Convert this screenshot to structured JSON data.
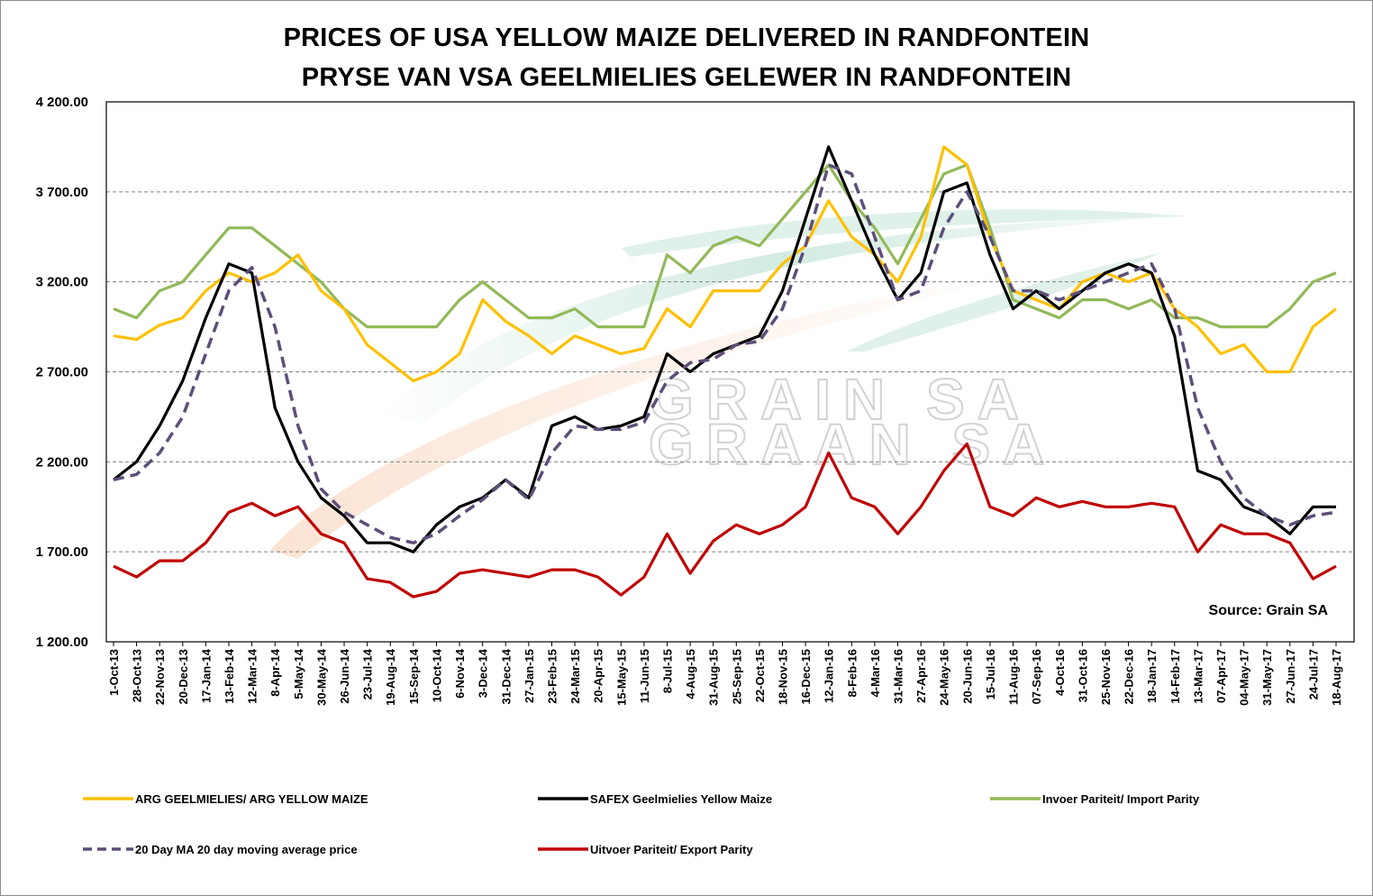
{
  "colors": {
    "arg": "#FFC000",
    "safex": "#000000",
    "import": "#92B959",
    "ma": "#5D4E7A",
    "export": "#C00000",
    "grid": "#808080"
  },
  "source_label": "Source: Grain SA",
  "chart_data": {
    "type": "line",
    "title": "PRICES OF USA YELLOW MAIZE DELIVERED IN RANDFONTEIN",
    "subtitle": "PRYSE VAN VSA GEELMIELIES GELEWER IN RANDFONTEIN",
    "xlabel": "",
    "ylabel": "",
    "ylim": [
      1200,
      4200
    ],
    "yticks": [
      "1 200.00",
      "1 700.00",
      "2 200.00",
      "2 700.00",
      "3 200.00",
      "3 700.00",
      "4 200.00"
    ],
    "grid": "horizontal dashed",
    "legend_position": "bottom",
    "categories": [
      "1-Oct-13",
      "28-Oct-13",
      "22-Nov-13",
      "20-Dec-13",
      "17-Jan-14",
      "13-Feb-14",
      "12-Mar-14",
      "8-Apr-14",
      "5-May-14",
      "30-May-14",
      "26-Jun-14",
      "23-Jul-14",
      "19-Aug-14",
      "15-Sep-14",
      "10-Oct-14",
      "6-Nov-14",
      "3-Dec-14",
      "31-Dec-14",
      "27-Jan-15",
      "23-Feb-15",
      "24-Mar-15",
      "20-Apr-15",
      "15-May-15",
      "11-Jun-15",
      "8-Jul-15",
      "4-Aug-15",
      "31-Aug-15",
      "25-Sep-15",
      "22-Oct-15",
      "18-Nov-15",
      "16-Dec-15",
      "12-Jan-16",
      "8-Feb-16",
      "4-Mar-16",
      "31-Mar-16",
      "27-Apr-16",
      "24-May-16",
      "20-Jun-16",
      "15-Jul-16",
      "11-Aug-16",
      "07-Sep-16",
      "4-Oct-16",
      "31-Oct-16",
      "25-Nov-16",
      "22-Dec-16",
      "18-Jan-17",
      "14-Feb-17",
      "13-Mar-17",
      "07-Apr-17",
      "04-May-17",
      "31-May-17",
      "27-Jun-17",
      "24-Jul-17",
      "18-Aug-17"
    ],
    "series": [
      {
        "name": "ARG GEELMIELIES/  ARG YELLOW MAIZE",
        "color": "#FFC000",
        "dashed": false,
        "values": [
          2900,
          2880,
          2960,
          3000,
          3150,
          3250,
          3200,
          3250,
          3350,
          3150,
          3050,
          2850,
          2750,
          2650,
          2700,
          2800,
          3100,
          2980,
          2900,
          2800,
          2900,
          2850,
          2800,
          2830,
          3050,
          2950,
          3150,
          3150,
          3150,
          3300,
          3400,
          3650,
          3450,
          3350,
          3200,
          3450,
          3950,
          3850,
          3450,
          3150,
          3100,
          3050,
          3200,
          3250,
          3200,
          3250,
          3050,
          2950,
          2800,
          2850,
          2700,
          2700,
          2950,
          3050
        ]
      },
      {
        "name": "SAFEX Geelmielies Yellow Maize",
        "color": "#000000",
        "dashed": false,
        "values": [
          2100,
          2200,
          2400,
          2650,
          3000,
          3300,
          3250,
          2500,
          2200,
          2000,
          1900,
          1750,
          1750,
          1700,
          1850,
          1950,
          2000,
          2100,
          2000,
          2400,
          2450,
          2380,
          2400,
          2450,
          2800,
          2700,
          2800,
          2850,
          2900,
          3150,
          3550,
          3950,
          3650,
          3350,
          3100,
          3250,
          3700,
          3750,
          3350,
          3050,
          3150,
          3050,
          3150,
          3250,
          3300,
          3250,
          2900,
          2150,
          2100,
          1950,
          1900,
          1800,
          1950,
          1950
        ]
      },
      {
        "name": "Invoer Pariteit/ Import Parity",
        "color": "#92B959",
        "dashed": false,
        "values": [
          3050,
          3000,
          3150,
          3200,
          3350,
          3500,
          3500,
          3400,
          3300,
          3200,
          3050,
          2950,
          2950,
          2950,
          2950,
          3100,
          3200,
          3100,
          3000,
          3000,
          3050,
          2950,
          2950,
          2950,
          3350,
          3250,
          3400,
          3450,
          3400,
          3550,
          3700,
          3850,
          3650,
          3500,
          3300,
          3550,
          3800,
          3850,
          3500,
          3100,
          3050,
          3000,
          3100,
          3100,
          3050,
          3100,
          3000,
          3000,
          2950,
          2950,
          2950,
          3050,
          3200,
          3250
        ]
      },
      {
        "name": "20 Day MA 20 day moving average price",
        "color": "#5D4E7A",
        "dashed": true,
        "values": [
          2100,
          2130,
          2250,
          2450,
          2800,
          3150,
          3280,
          2950,
          2400,
          2050,
          1920,
          1850,
          1780,
          1750,
          1800,
          1900,
          1990,
          2100,
          1990,
          2250,
          2400,
          2380,
          2380,
          2420,
          2650,
          2750,
          2770,
          2850,
          2870,
          3050,
          3400,
          3850,
          3800,
          3450,
          3100,
          3150,
          3500,
          3700,
          3450,
          3150,
          3150,
          3100,
          3150,
          3200,
          3250,
          3300,
          3050,
          2500,
          2200,
          2000,
          1900,
          1850,
          1900,
          1920
        ]
      },
      {
        "name": "Uitvoer Pariteit/ Export Parity",
        "color": "#C00000",
        "dashed": false,
        "values": [
          1620,
          1560,
          1650,
          1650,
          1750,
          1920,
          1970,
          1900,
          1950,
          1800,
          1750,
          1550,
          1530,
          1450,
          1480,
          1580,
          1600,
          1580,
          1560,
          1600,
          1600,
          1560,
          1460,
          1560,
          1800,
          1580,
          1760,
          1850,
          1800,
          1850,
          1950,
          2250,
          2000,
          1950,
          1800,
          1950,
          2150,
          2300,
          1950,
          1900,
          2000,
          1950,
          1980,
          1950,
          1950,
          1970,
          1950,
          1700,
          1850,
          1800,
          1800,
          1750,
          1550,
          1620
        ]
      }
    ]
  },
  "legend": [
    {
      "label": "ARG GEELMIELIES/  ARG YELLOW MAIZE",
      "color": "#FFC000",
      "dashed": false
    },
    {
      "label": "SAFEX Geelmielies Yellow Maize",
      "color": "#000000",
      "dashed": false
    },
    {
      "label": "Invoer Pariteit/ Import Parity",
      "color": "#92B959",
      "dashed": false
    },
    {
      "label": "20 Day MA 20 day moving average price",
      "color": "#5D4E7A",
      "dashed": true
    },
    {
      "label": "Uitvoer Pariteit/ Export Parity",
      "color": "#C00000",
      "dashed": false
    }
  ]
}
